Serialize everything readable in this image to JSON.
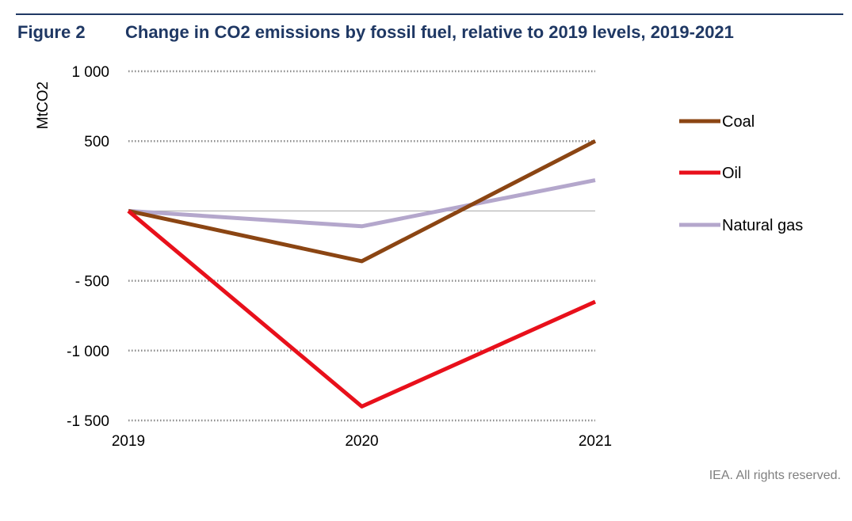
{
  "header": {
    "figure_label": "Figure 2",
    "title": "Change in CO2 emissions by fossil fuel, relative to 2019 levels, 2019-2021"
  },
  "footer": {
    "credit": "IEA. All rights reserved."
  },
  "chart_data": {
    "type": "line",
    "title": "Change in CO2 emissions by fossil fuel, relative to 2019 levels, 2019-2021",
    "ylabel": "MtCO2",
    "xlabel": "",
    "x": [
      "2019",
      "2020",
      "2021"
    ],
    "ylim": [
      -1500,
      1000
    ],
    "yticks": [
      1000,
      500,
      -500,
      -1000,
      -1500
    ],
    "ytick_labels": [
      "1 000",
      "500",
      "- 500",
      "-1 000",
      "-1 500"
    ],
    "grid": "dotted horizontal",
    "legend_position": "right",
    "series": [
      {
        "name": "Coal",
        "values": [
          0,
          -360,
          500
        ],
        "color": "#8b4513"
      },
      {
        "name": "Oil",
        "values": [
          0,
          -1400,
          -650
        ],
        "color": "#e8101b"
      },
      {
        "name": "Natural gas",
        "values": [
          0,
          -110,
          220
        ],
        "color": "#b4a7cc"
      }
    ]
  }
}
